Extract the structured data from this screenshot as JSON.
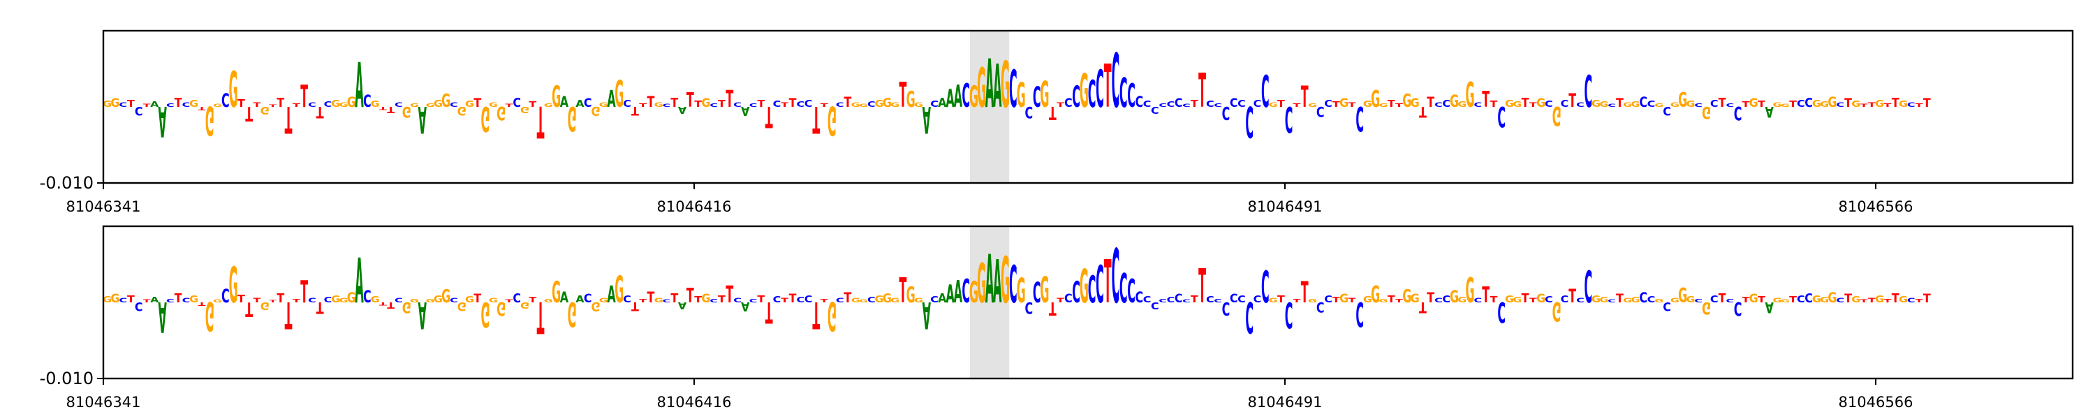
{
  "chart_data": [
    {
      "type": "sequence-logo",
      "title": "",
      "xlabel": "",
      "ylabel": "",
      "xlim": [
        81046341,
        81046591
      ],
      "ylim": [
        -0.01,
        0.01
      ],
      "xticks": [
        81046341,
        81046416,
        81046491,
        81046566
      ],
      "xtick_labels": [
        "81046341",
        "81046416",
        "81046491",
        "81046566"
      ],
      "yticks": [
        -0.01
      ],
      "ytick_labels": [
        "-0.010"
      ],
      "highlight_region": [
        81046451,
        81046456
      ],
      "sequence": "GGCTCTAACTCGTGGCGTTTGTTTTTCTCGGGACGTTCGGAGGGCGGTGGGTCGTTGGAGACGGAGCTTTGCTATTGCTTCACTTCTTCCTTGCTGGCGGGTGGACAAACGGAAGCGCCGTTCCGCCTCCCCCCCCCCTTCCCCCCCCGTCTTGCCTGTCGGGTTGGTTCCGGGCTTCGGTTGCGCTCCGGCTGGCCGCGGGCGCTCCTGTAGGTCCGGGCTGTTGTTGCTTTCCGCTTTTTTCCTTT",
      "scores": [
        0.0008,
        0.0011,
        0.0006,
        0.0009,
        -0.0011,
        0.0004,
        0.0007,
        -0.004,
        0.0005,
        0.0012,
        0.0006,
        0.0009,
        -0.0005,
        -0.0038,
        0.0004,
        0.0018,
        0.0047,
        0.001,
        -0.0019,
        0.0006,
        -0.001,
        0.0003,
        0.0012,
        -0.0035,
        0.0005,
        0.0029,
        0.0006,
        -0.0015,
        0.0007,
        0.0009,
        0.0006,
        0.0013,
        0.0059,
        0.0016,
        0.0008,
        -0.0004,
        -0.0008,
        0.0006,
        -0.0014,
        0.0005,
        -0.0035,
        0.0005,
        0.0009,
        0.0017,
        0.0006,
        -0.0011,
        0.0008,
        0.0011,
        -0.0033,
        0.0006,
        -0.0018,
        0.0004,
        0.0012,
        -0.0008,
        0.0007,
        -0.0042,
        0.0005,
        0.0028,
        0.0014,
        -0.0032,
        0.0009,
        0.0011,
        -0.0012,
        0.0006,
        0.0022,
        0.0035,
        0.0009,
        -0.0011,
        0.0005,
        0.0014,
        0.0006,
        0.0004,
        0.0012,
        -0.0009,
        0.0019,
        0.0008,
        0.0011,
        0.0005,
        0.0009,
        0.0022,
        0.0006,
        -0.0012,
        0.0005,
        0.0009,
        -0.0028,
        0.0008,
        0.0006,
        0.0011,
        0.0007,
        0.0009,
        -0.0035,
        0.0005,
        -0.0038,
        0.0006,
        0.0013,
        0.0006,
        0.0004,
        0.0007,
        0.0009,
        0.0012,
        0.0006,
        0.0033,
        0.0021,
        0.0006,
        -0.0035,
        0.0008,
        0.0012,
        0.0024,
        0.0029,
        0.0031,
        0.0028,
        0.0052,
        0.0064,
        0.0057,
        0.0061,
        0.0049,
        0.0032,
        -0.0015,
        0.0027,
        0.0034,
        -0.0017,
        0.0006,
        0.0011,
        0.0028,
        0.0044,
        0.0036,
        0.0049,
        0.0057,
        0.0071,
        0.0039,
        0.0031,
        0.0014,
        0.0008,
        -0.0009,
        0.0005,
        0.0007,
        0.0011,
        0.0004,
        0.0009,
        0.0045,
        0.0008,
        0.0005,
        -0.0017,
        0.0011,
        0.0009,
        -0.0041,
        0.0009,
        0.0042,
        0.0006,
        0.0009,
        -0.0034,
        0.0005,
        0.0028,
        0.0005,
        -0.0013,
        0.0009,
        0.0007,
        0.0011,
        0.0006,
        -0.0032,
        0.0008,
        0.0022,
        0.0005,
        0.0009,
        0.0005,
        0.0017,
        0.0011,
        -0.0014,
        0.0013,
        0.0006,
        0.0009,
        0.0016,
        0.0007,
        0.0033,
        0.0006,
        0.0021,
        0.0008,
        -0.0027,
        0.0009,
        0.0007,
        0.0012,
        0.0006,
        0.0011,
        0.0008,
        -0.0025,
        0.0009,
        0.0018,
        0.0006,
        0.0042,
        0.0009,
        0.0007,
        0.0004,
        0.0011,
        0.0006,
        0.0007,
        0.0013,
        0.0008,
        0.0005,
        -0.0011,
        0.0006,
        0.0019,
        0.0008,
        0.0005,
        -0.0016,
        0.0009,
        0.0012,
        0.0005,
        -0.0018,
        0.0007,
        0.0011,
        0.0008,
        -0.0014,
        0.0006,
        0.0004,
        0.0008,
        0.0009,
        0.0012,
        0.0009,
        0.0007,
        0.0013,
        0.0006,
        0.0011,
        0.0008,
        0.0004,
        0.0006,
        0.0009,
        0.0005,
        0.0012,
        0.0008,
        0.0006,
        0.0005,
        0.0011
      ]
    },
    {
      "type": "sequence-logo",
      "title": "",
      "xlabel": "",
      "ylabel": "",
      "xlim": [
        81046341,
        81046591
      ],
      "ylim": [
        -0.01,
        0.01
      ],
      "xticks": [
        81046341,
        81046416,
        81046491,
        81046566
      ],
      "xtick_labels": [
        "81046341",
        "81046416",
        "81046491",
        "81046566"
      ],
      "yticks": [
        -0.01
      ],
      "ytick_labels": [
        "-0.010"
      ],
      "highlight_region": [
        81046451,
        81046456
      ],
      "sequence": "GGCTCTAACTCGTGGCGTTTGTTTTTCTCGGGACGTTCGGAGGGCGGTGGGTCGTTGGAGACGGAGCTTTGCTATTGCTTCACTTCTTCCTTGCTGGCGGGTGGACAAACGGAAGCGCCGTTCCGCCTCCCCCCCCCCTTCCCCCCCCGTCTTGCCTGTCGGGTTGGTTCCGGGCTTCGGTTGCGCTCCGGCTGGCCGCGGGCGCTCCTGTAGGTCCGGGCTGTTGTTGCTTTCCGCTTTTTTCCTTT",
      "scores": [
        0.0008,
        0.0011,
        0.0006,
        0.0009,
        -0.0011,
        0.0004,
        0.0007,
        -0.004,
        0.0005,
        0.0012,
        0.0006,
        0.0009,
        -0.0005,
        -0.0038,
        0.0004,
        0.0018,
        0.0047,
        0.001,
        -0.0019,
        0.0006,
        -0.001,
        0.0003,
        0.0012,
        -0.0035,
        0.0005,
        0.0029,
        0.0006,
        -0.0015,
        0.0007,
        0.0009,
        0.0006,
        0.0013,
        0.0059,
        0.0016,
        0.0008,
        -0.0004,
        -0.0008,
        0.0006,
        -0.0014,
        0.0005,
        -0.0035,
        0.0005,
        0.0009,
        0.0017,
        0.0006,
        -0.0011,
        0.0008,
        0.0011,
        -0.0033,
        0.0006,
        -0.0018,
        0.0004,
        0.0012,
        -0.0008,
        0.0007,
        -0.0042,
        0.0005,
        0.0028,
        0.0014,
        -0.0032,
        0.0009,
        0.0011,
        -0.0012,
        0.0006,
        0.0022,
        0.0035,
        0.0009,
        -0.0011,
        0.0005,
        0.0014,
        0.0006,
        0.0004,
        0.0012,
        -0.0009,
        0.0019,
        0.0008,
        0.0011,
        0.0005,
        0.0009,
        0.0022,
        0.0006,
        -0.0012,
        0.0005,
        0.0009,
        -0.0028,
        0.0008,
        0.0006,
        0.0011,
        0.0007,
        0.0009,
        -0.0035,
        0.0005,
        -0.0038,
        0.0006,
        0.0013,
        0.0006,
        0.0004,
        0.0007,
        0.0009,
        0.0012,
        0.0006,
        0.0033,
        0.0021,
        0.0006,
        -0.0035,
        0.0008,
        0.0012,
        0.0024,
        0.0029,
        0.0031,
        0.0028,
        0.0052,
        0.0064,
        0.0057,
        0.0061,
        0.0049,
        0.0032,
        -0.0015,
        0.0027,
        0.0034,
        -0.0017,
        0.0006,
        0.0011,
        0.0028,
        0.0044,
        0.0036,
        0.0049,
        0.0057,
        0.0071,
        0.0039,
        0.0031,
        0.0014,
        0.0008,
        -0.0009,
        0.0005,
        0.0007,
        0.0011,
        0.0004,
        0.0009,
        0.0045,
        0.0008,
        0.0005,
        -0.0017,
        0.0011,
        0.0009,
        -0.0041,
        0.0009,
        0.0042,
        0.0006,
        0.0009,
        -0.0034,
        0.0005,
        0.0028,
        0.0005,
        -0.0013,
        0.0009,
        0.0007,
        0.0011,
        0.0006,
        -0.0032,
        0.0008,
        0.0022,
        0.0005,
        0.0009,
        0.0005,
        0.0017,
        0.0011,
        -0.0014,
        0.0013,
        0.0006,
        0.0009,
        0.0016,
        0.0007,
        0.0033,
        0.0006,
        0.0021,
        0.0008,
        -0.0027,
        0.0009,
        0.0007,
        0.0012,
        0.0006,
        0.0011,
        0.0008,
        -0.0025,
        0.0009,
        0.0018,
        0.0006,
        0.0042,
        0.0009,
        0.0007,
        0.0004,
        0.0011,
        0.0006,
        0.0007,
        0.0013,
        0.0008,
        0.0005,
        -0.0011,
        0.0006,
        0.0019,
        0.0008,
        0.0005,
        -0.0016,
        0.0009,
        0.0012,
        0.0005,
        -0.0018,
        0.0007,
        0.0011,
        0.0008,
        -0.0014,
        0.0006,
        0.0004,
        0.0008,
        0.0009,
        0.0012,
        0.0009,
        0.0007,
        0.0013,
        0.0006,
        0.0011,
        0.0008,
        0.0004,
        0.0006,
        0.0009,
        0.0005,
        0.0012,
        0.0008,
        0.0006,
        0.0005,
        0.0011
      ]
    }
  ],
  "base_colors": {
    "A": "#008000",
    "C": "#0000ff",
    "G": "#ffa500",
    "T": "#ff0000"
  }
}
